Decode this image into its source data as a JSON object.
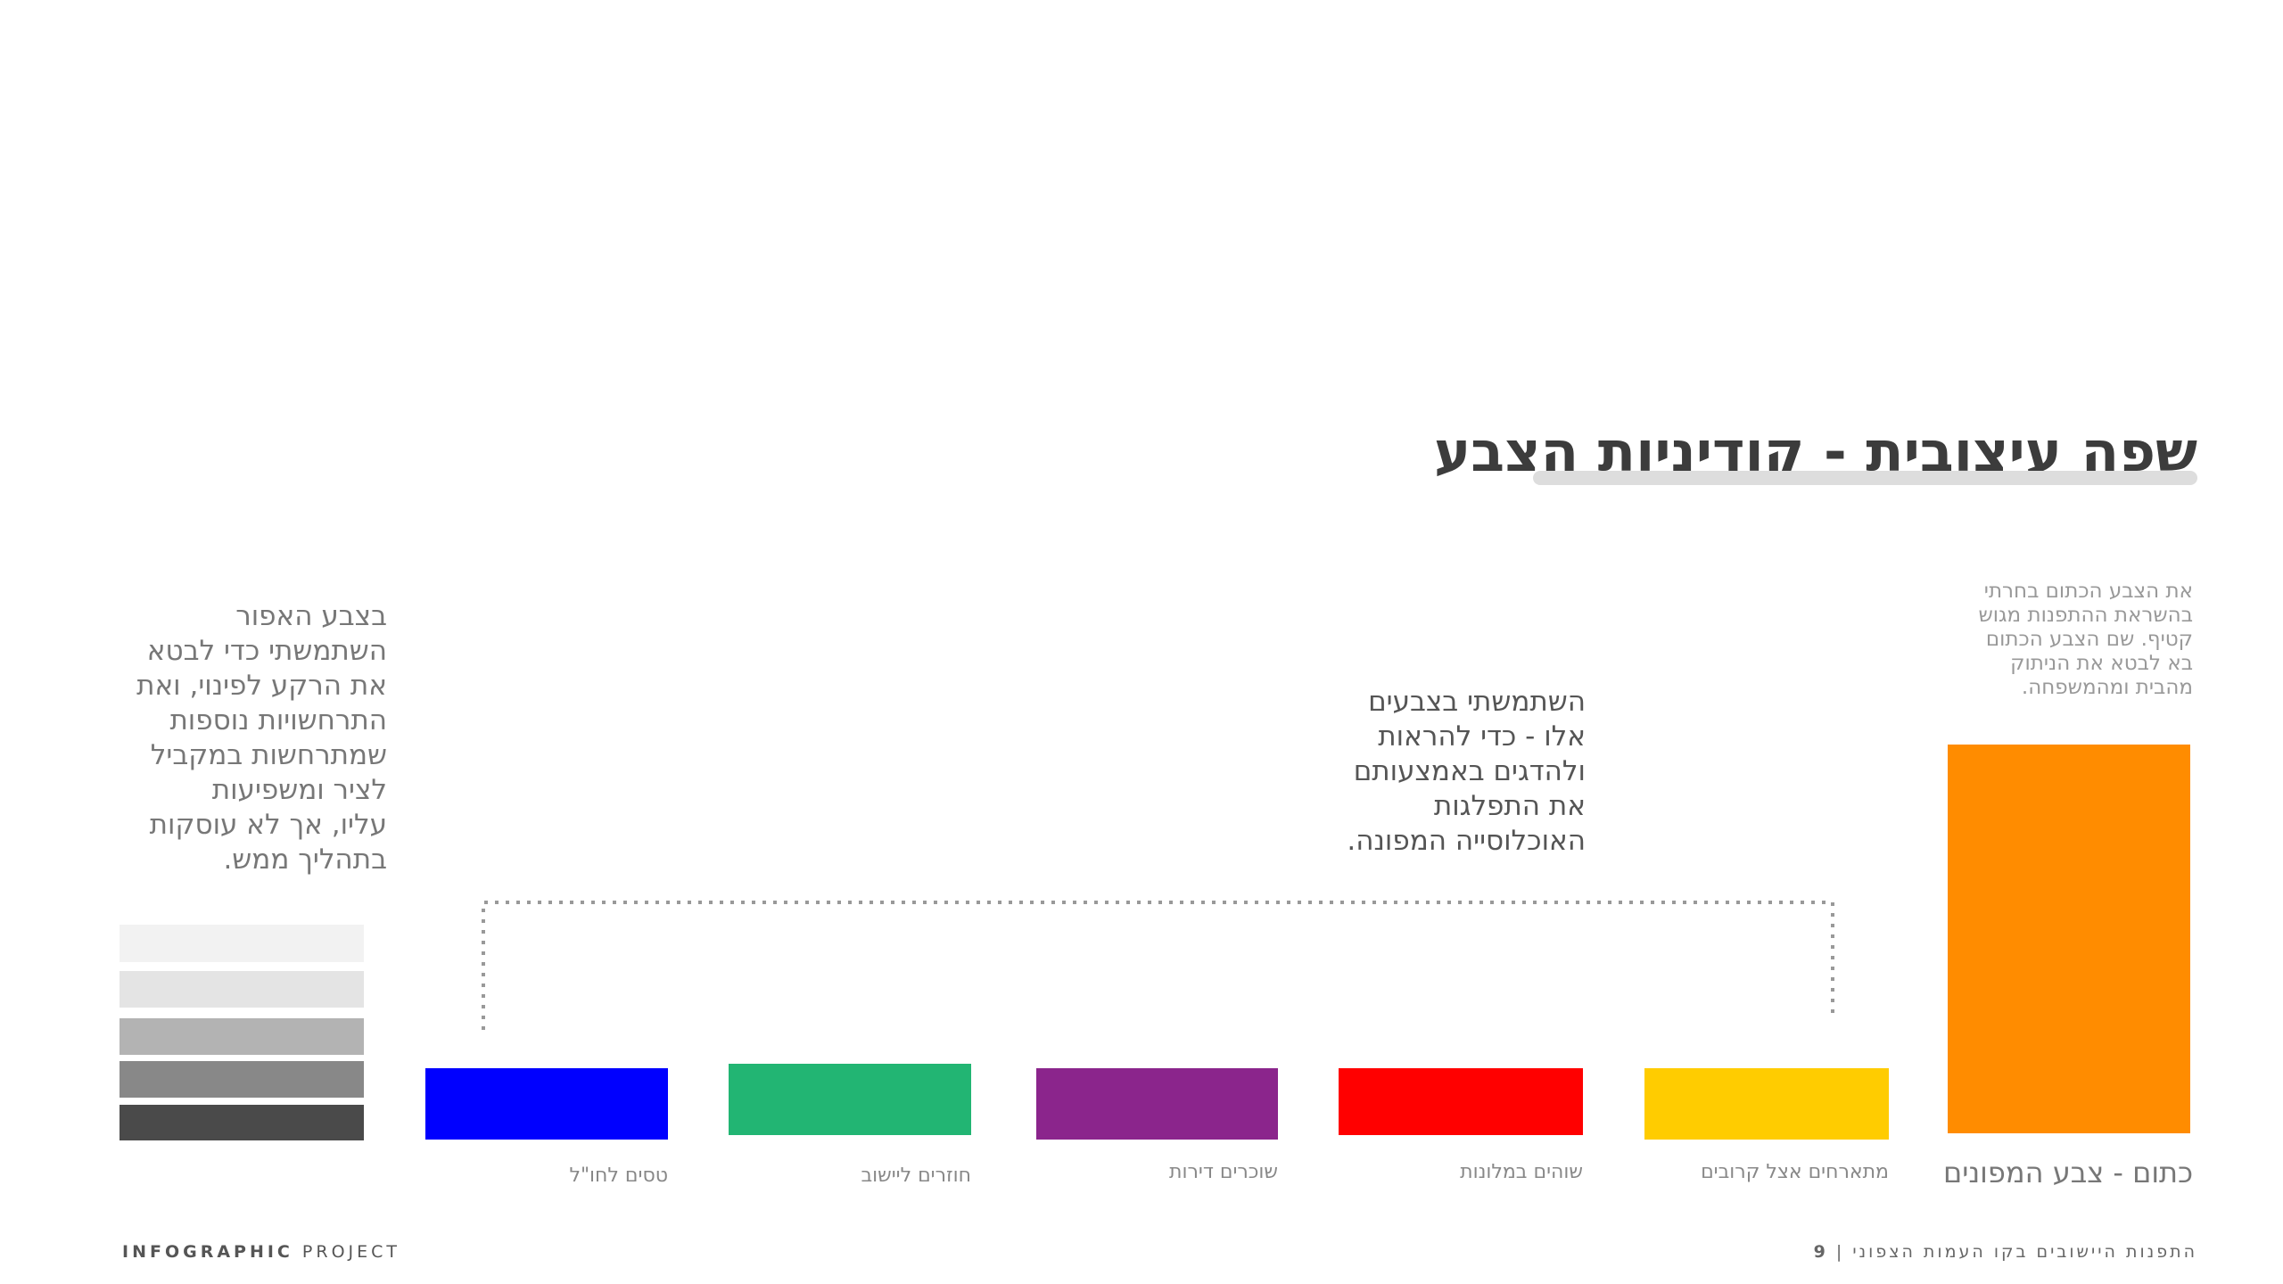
{
  "header": {
    "title": "שפה עיצובית - קודיניות הצבע"
  },
  "orange": {
    "description": [
      "את הצבע הכתום בחרתי",
      "בהשראת ההתפנות מגוש",
      "קטיף. שם הצבע הכתום",
      "בא לבטא את הניתוק",
      "מהבית ומהמשפחה."
    ],
    "label": "כתום - צבע המפונים"
  },
  "middle_note": [
    "השתמשתי בצבעים",
    "אלו - כדי להראות",
    "ולהדגים באמצעותם",
    "את התפלגות",
    "האוכלוסייה המפונה."
  ],
  "gray_note": [
    "בצבע האפור",
    "השתמשתי כדי לבטא",
    "את הרקע לפינוי, ואת",
    "התרחשויות נוספות",
    "שמתרחשות במקביל",
    "לציר ומשפיעות",
    "עליו, אך לא עוסקות",
    "בתהליך ממש."
  ],
  "swatches": [
    {
      "label": "מתארחים אצל קרובים"
    },
    {
      "label": "שוהים במלונות"
    },
    {
      "label": "שוכרים דירות"
    },
    {
      "label": "חוזרים ליישוב"
    },
    {
      "label": "טסים לחו\"ל"
    }
  ],
  "footer": {
    "brand": "INFOGRAPHIC",
    "brand_rest": "PROJECT",
    "title": "התפנות היישובים בקו העמות הצפוני",
    "separator": "|",
    "page": "9"
  }
}
